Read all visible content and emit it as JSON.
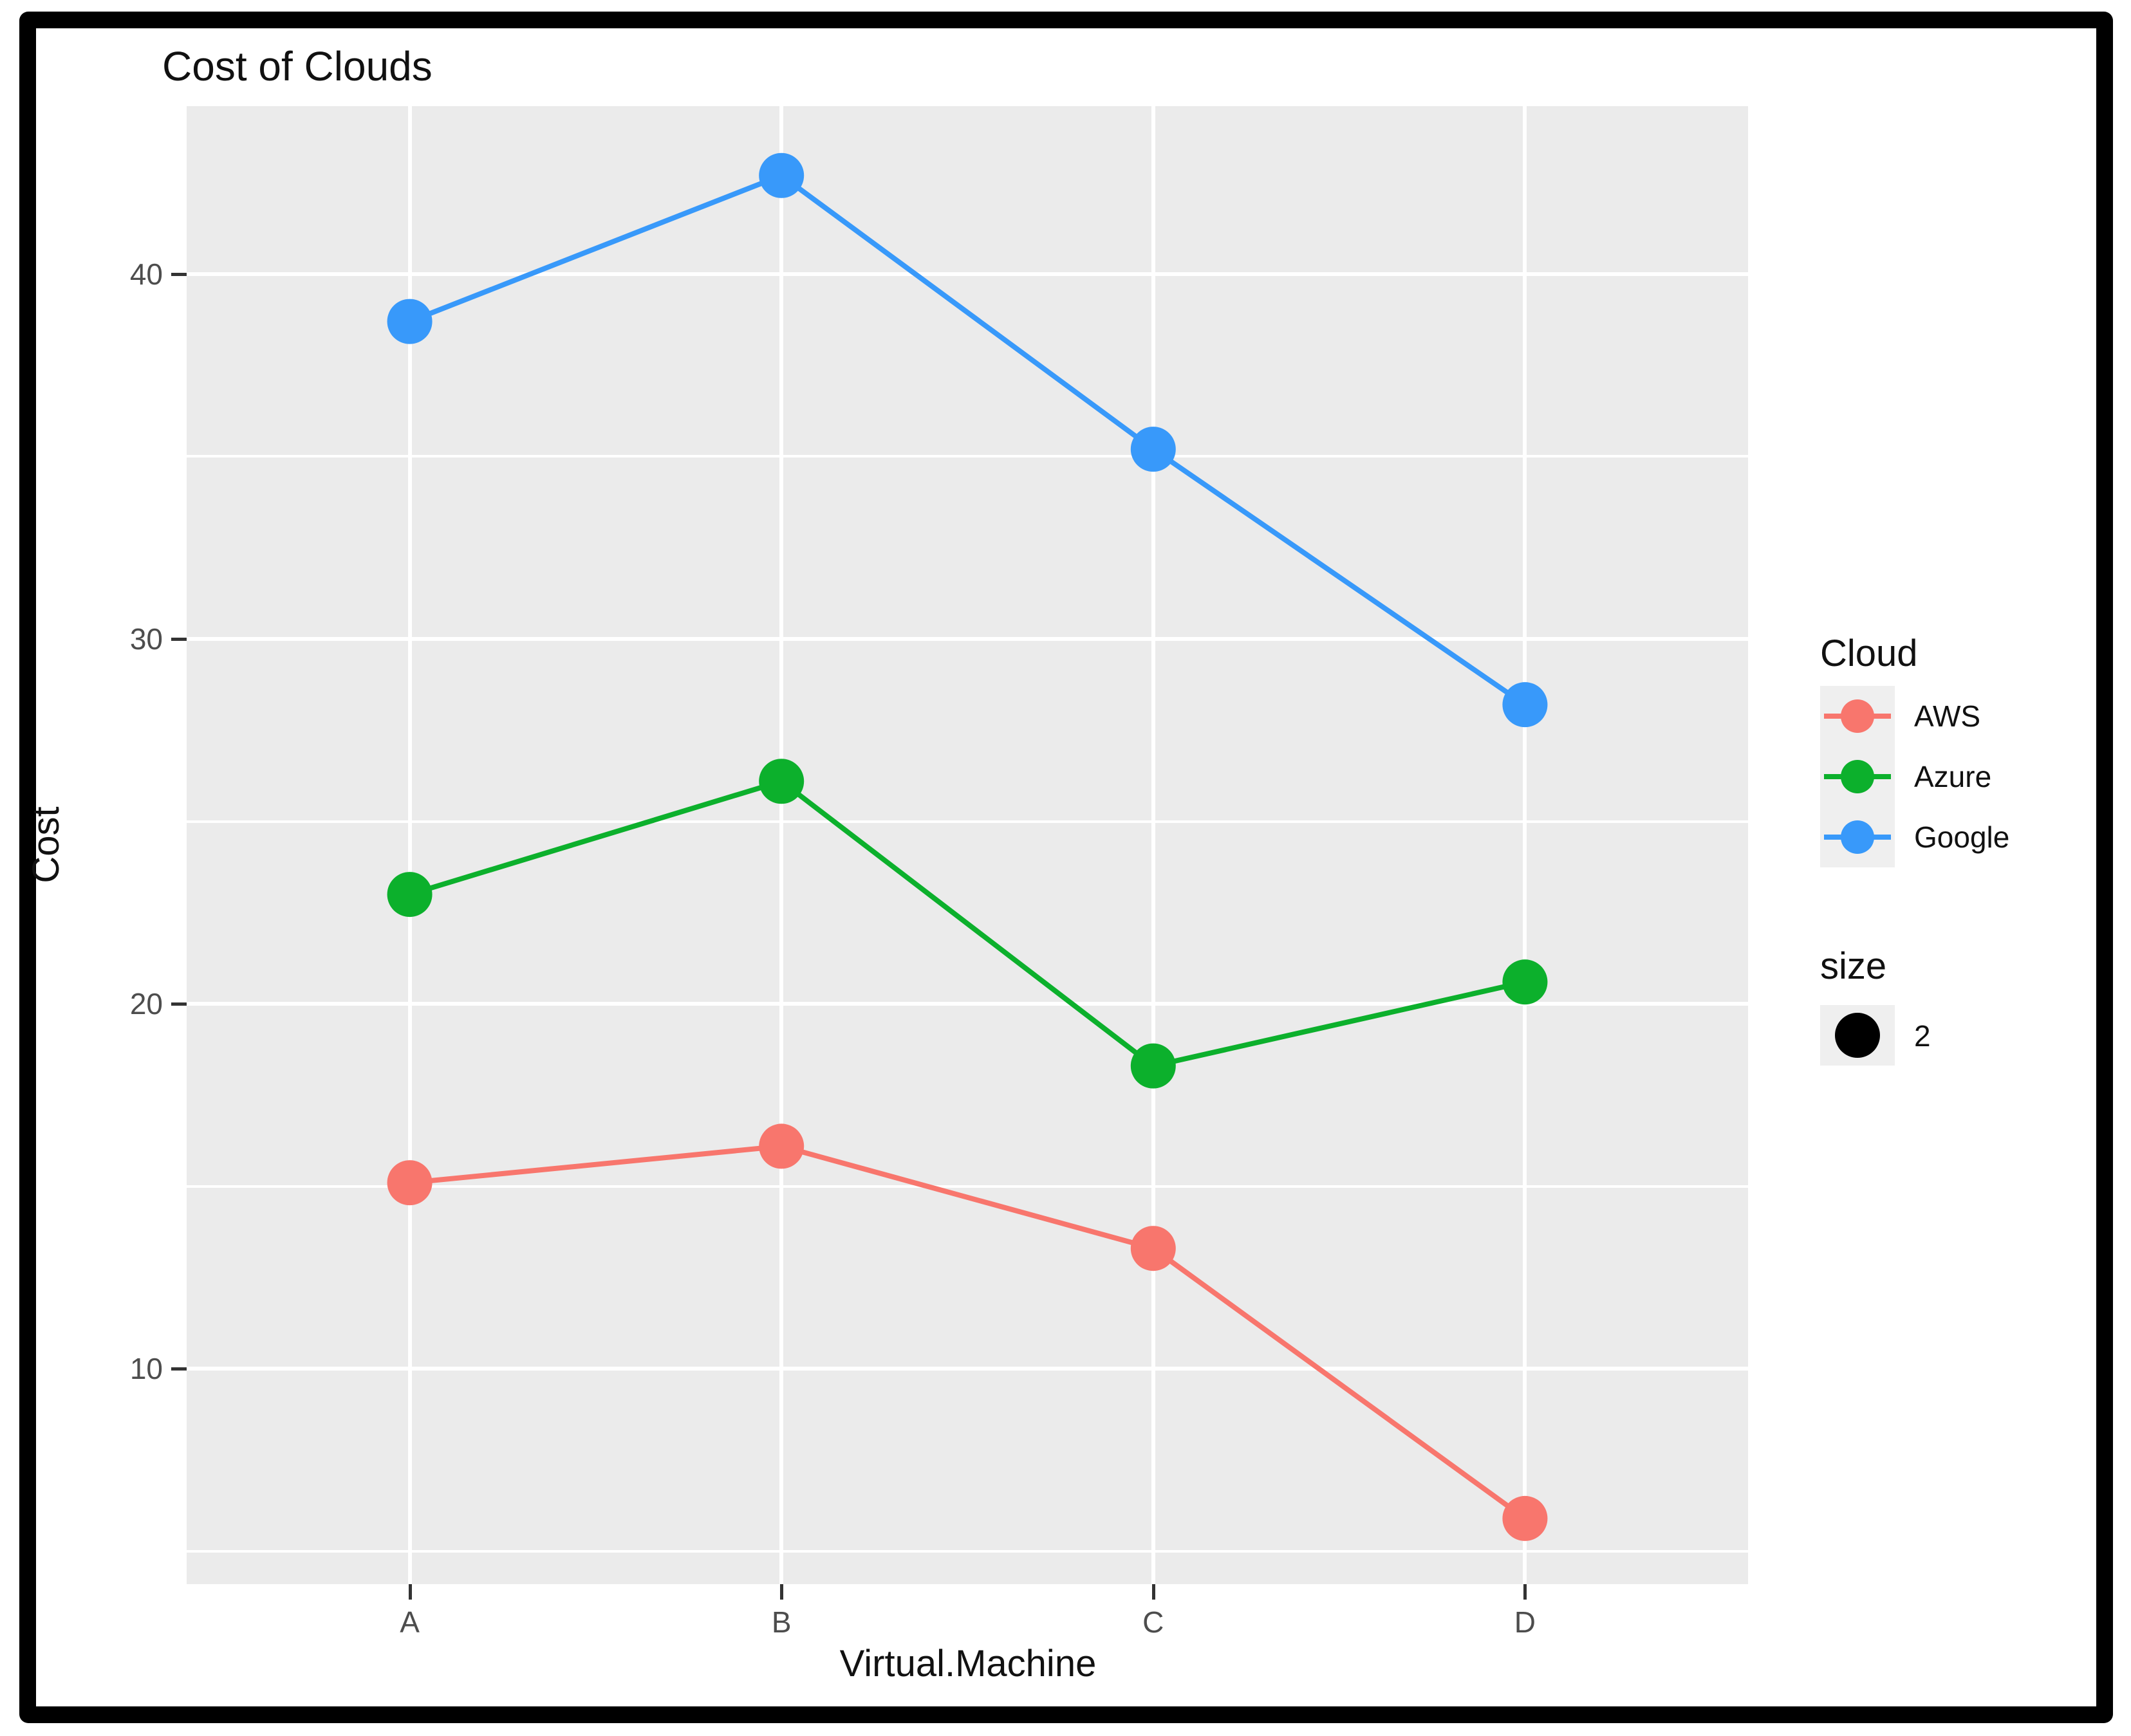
{
  "chart_data": {
    "type": "line",
    "title": "Cost of Clouds",
    "xlabel": "Virtual.Machine",
    "ylabel": "Cost",
    "categories": [
      "A",
      "B",
      "C",
      "D"
    ],
    "series": [
      {
        "name": "AWS",
        "color": "#F8766D",
        "values": [
          15.1,
          16.1,
          13.3,
          5.9
        ]
      },
      {
        "name": "Azure",
        "color": "#0CB02C",
        "values": [
          23.0,
          26.1,
          18.3,
          20.6
        ]
      },
      {
        "name": "Google",
        "color": "#3899FA",
        "values": [
          38.7,
          42.7,
          35.2,
          28.2
        ]
      }
    ],
    "legend_title": "Cloud",
    "legend_position": "right",
    "point_size_legend": {
      "title": "size",
      "value": "2",
      "color": "#000000"
    },
    "grid": true,
    "y_major_ticks": [
      40,
      30,
      20,
      10
    ],
    "y_minor_ticks": [
      35,
      25,
      15,
      5
    ],
    "ylim": [
      4.1,
      44.6
    ],
    "panel_bg": "#EBEBEB",
    "grid_color": "#FFFFFF",
    "tick_text_color": "#4d4d4d"
  }
}
